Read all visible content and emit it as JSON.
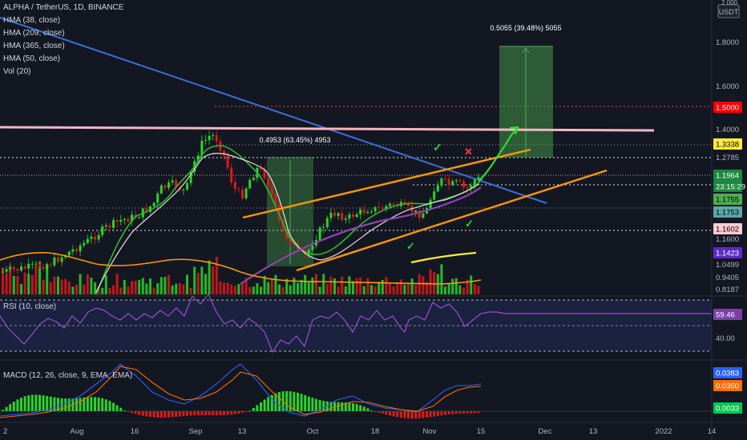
{
  "symbol_line": "ALPHA / TetherUS, 1D, BINANCE",
  "indicators": [
    "HMA (38, close)",
    "HMA (209, close)",
    "HMA (365, close)",
    "HMA (50, close)",
    "Vol (20)"
  ],
  "currency": "USDT",
  "top_partial_tick": "2.000",
  "rsi_label": "RSI (10, close)",
  "macd_label": "MACD (12, 26, close, 9, EMA, EMA)",
  "x_labels": [
    "2",
    "Aug",
    "16",
    "Sep",
    "13",
    "Oct",
    "18",
    "Nov",
    "15",
    "Dec",
    "13",
    "2022",
    "14"
  ],
  "price_ticks": [
    "1.8000",
    "1.6000",
    "1.4000",
    "1.2785",
    "1.1755",
    "1.1600",
    "1.0499",
    "0.9405",
    "0.8187"
  ],
  "rsi_tick": "40.00",
  "price_badges": [
    {
      "text": "1.5000",
      "bg": "#ff0000",
      "fg": "#ffffff"
    },
    {
      "text": "1.3338",
      "bg": "#ffeb3b",
      "fg": "#000000"
    },
    {
      "text": "1.1964",
      "bg": "#1b8a3f",
      "fg": "#ffffff"
    },
    {
      "text": "23:15:29",
      "bg": "#1b8a3f",
      "fg": "#ffffff"
    },
    {
      "text": "1.1755",
      "bg": "#4caf50",
      "fg": "#000000"
    },
    {
      "text": "1.1753",
      "bg": "#5aa9a8",
      "fg": "#000000"
    },
    {
      "text": "1.1602",
      "bg": "#ffcdd2",
      "fg": "#000000"
    },
    {
      "text": "1.1423",
      "bg": "#5b2bc4",
      "fg": "#ffffff"
    }
  ],
  "rsi_badge": {
    "text": "59.46",
    "bg": "#7b3fa8",
    "fg": "#ffffff"
  },
  "macd_badges": [
    {
      "text": "0.0383",
      "bg": "#2962ff",
      "fg": "#ffffff"
    },
    {
      "text": "0.0350",
      "bg": "#ff6d00",
      "fg": "#ffffff"
    },
    {
      "text": "0.0033",
      "bg": "#00c853",
      "fg": "#ffffff"
    }
  ],
  "measure_1": "0.4953 (63.45%) 4953",
  "measure_2": "0.5055 (39.48%) 5055",
  "colors": {
    "up": "#26d626",
    "down": "#e01818",
    "blue_line": "#3d6fd6",
    "pink_line": "#f4b6c2",
    "orange": "#ff9800",
    "purple": "#8e44ad",
    "rsi": "#9c4dcc",
    "macd": "#2962ff",
    "signal": "#ff6d00"
  }
}
